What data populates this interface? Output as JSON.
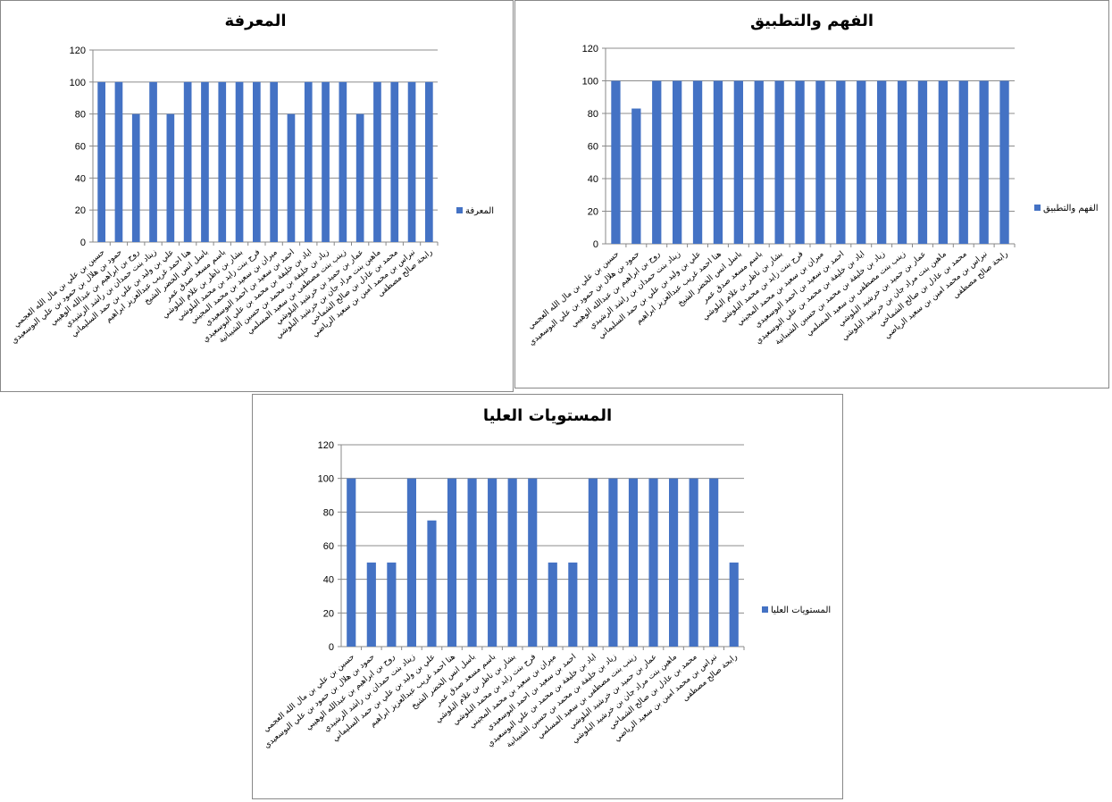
{
  "chart_data": [
    {
      "type": "bar",
      "title": "المعرفة",
      "legend": [
        "المعرفة"
      ],
      "legend_position": "right",
      "ylim": [
        0,
        120
      ],
      "yticks": [
        0,
        20,
        40,
        60,
        80,
        100,
        120
      ],
      "grid": true,
      "color": "#4472C4",
      "categories_ref": "students",
      "values": [
        100,
        100,
        80,
        100,
        80,
        100,
        100,
        100,
        100,
        100,
        100,
        80,
        100,
        100,
        100,
        80,
        100,
        100,
        100,
        100
      ]
    },
    {
      "type": "bar",
      "title": "الفهم والتطبيق",
      "legend": [
        "الفهم والتطبيق"
      ],
      "legend_position": "right",
      "ylim": [
        0,
        120
      ],
      "yticks": [
        0,
        20,
        40,
        60,
        80,
        100,
        120
      ],
      "grid": true,
      "color": "#4472C4",
      "categories_ref": "students",
      "values": [
        100,
        83,
        100,
        100,
        100,
        100,
        100,
        100,
        100,
        100,
        100,
        100,
        100,
        100,
        100,
        100,
        100,
        100,
        100,
        100
      ]
    },
    {
      "type": "bar",
      "title": "المستويات العليا",
      "legend": [
        "المستويات العليا"
      ],
      "legend_position": "right",
      "ylim": [
        0,
        120
      ],
      "yticks": [
        0,
        20,
        40,
        60,
        80,
        100,
        120
      ],
      "grid": true,
      "color": "#4472C4",
      "categories_ref": "students",
      "values": [
        100,
        50,
        50,
        100,
        75,
        100,
        100,
        100,
        100,
        100,
        50,
        50,
        100,
        100,
        100,
        100,
        100,
        100,
        100,
        50
      ]
    }
  ],
  "students": [
    "حسين بن علي بن مال الله العجمي",
    "حمود بن هلال بن حمود بن علي البوسعيدي",
    "روح بن ابراهيم بن عبدالله الوهيبي",
    "زيناد بنت حمدان بن راشد الرشيدي",
    "علي بن وليد بن علي بن حمد السليماني",
    "هنا احمد غريب عبدالعزيز ابراهيم",
    "باسل انس الخضر الشيخ",
    "باسم مسعد صدق عمر",
    "بشار بن ناظر بن غلام البلوشي",
    "فرح بنت زايد بن محمد البلوشي",
    "ميران بن سعيد بن محمد المجيني",
    "احمد بن سعيد بن احمد البوسعيدي",
    "اياد بن خليفة بن محمد بن علي البوسعيدي",
    "زياد بن خليفة بن محمد بن حسين الشيبانية",
    "زينب بنت مصطفى بن سعيد المسلمي",
    "عمار بن حميد بن خرشيد البلوشي",
    "ماهين بنت مراد جان بن خرشيد البلوشي",
    "محمد بن عادل بن صالح الشماخي",
    "نبراس بن محمد امين بن سعيد الرياضي",
    "رابحة صالح مصطفى"
  ]
}
